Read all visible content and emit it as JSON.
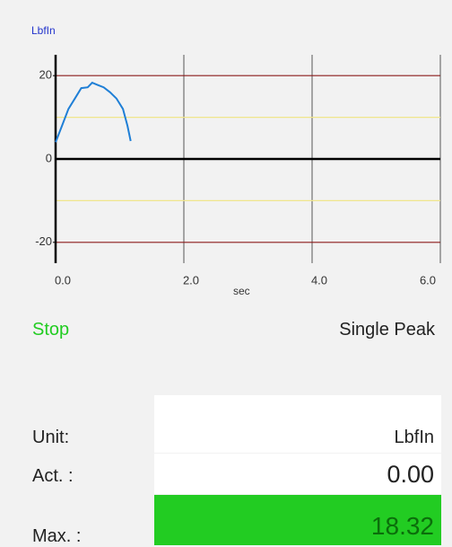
{
  "chart_data": {
    "type": "line",
    "y_label": "LbfIn",
    "x_label": "sec",
    "x": [
      0,
      0.1,
      0.2,
      0.3,
      0.4,
      0.5,
      0.57,
      0.65,
      0.75,
      0.85,
      0.95,
      1.05,
      1.12,
      1.17
    ],
    "series": [
      {
        "color": "#1f7fd6",
        "values": [
          4,
          8,
          12,
          14.5,
          17,
          17.2,
          18.3,
          17.8,
          17.2,
          16,
          14.5,
          12,
          8,
          4.3
        ]
      }
    ],
    "xlim": [
      0,
      6
    ],
    "ylim": [
      -25,
      25
    ],
    "xticks": [
      {
        "value": 0,
        "label": "0.0"
      },
      {
        "value": 2,
        "label": "2.0"
      },
      {
        "value": 4,
        "label": "4.0"
      },
      {
        "value": 6,
        "label": "6.0"
      }
    ],
    "yticks": [
      20,
      0,
      -20
    ],
    "limit_lines": [
      {
        "value": 20,
        "color": "#8b1a1a"
      },
      {
        "value": 10,
        "color": "#f0e68c"
      },
      {
        "value": -10,
        "color": "#f0e68c"
      },
      {
        "value": -20,
        "color": "#8b1a1a"
      }
    ],
    "grid": true
  },
  "status": {
    "state": "Stop",
    "mode": "Single Peak"
  },
  "readings": {
    "rows": [
      [
        "Unit:",
        "LbfIn"
      ],
      [
        "Act. :",
        "0.00"
      ],
      [
        "Max. :",
        "18.32"
      ]
    ]
  }
}
